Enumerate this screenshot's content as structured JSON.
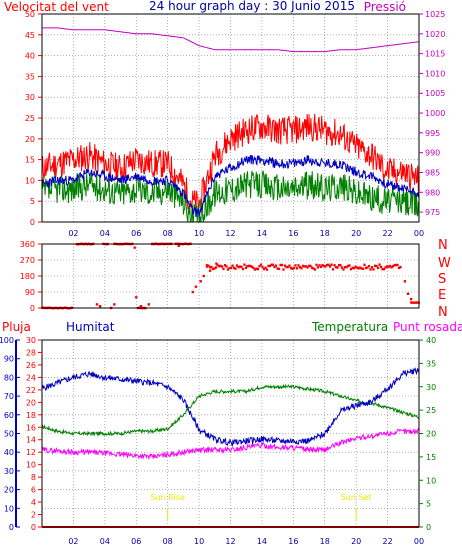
{
  "header": {
    "title": "24 hour graph day : 30 Junio 2015",
    "left_label": "Velocitat del vent",
    "right_label": "Pressió"
  },
  "colors": {
    "frame": "#000000",
    "grid": "#7f7f7f",
    "wind_max": "#ff0000",
    "wind_avg": "#0000c0",
    "wind_min": "#008000",
    "pressure": "#c000c0",
    "direction": "#ff0000",
    "rain": "#ff0000",
    "humidity": "#0000c0",
    "temperature": "#008000",
    "dewpoint": "#ff00ff",
    "sun_marker": "#e8e800",
    "title": "#0000a0"
  },
  "chart_data": [
    {
      "type": "line",
      "id": "wind_pressure",
      "title": "24 hour graph day : 30 Junio 2015",
      "x_ticks": [
        "02",
        "04",
        "06",
        "08",
        "10",
        "12",
        "14",
        "16",
        "18",
        "20",
        "22",
        "00"
      ],
      "xlim": [
        0,
        24
      ],
      "y_left": {
        "label": "Velocitat del vent",
        "range": [
          0,
          50
        ],
        "ticks": [
          "0",
          "5",
          "10",
          "15",
          "20",
          "25",
          "30",
          "35",
          "40",
          "45",
          "50"
        ]
      },
      "y_right": {
        "label": "Pressió",
        "range": [
          972.5,
          1025
        ],
        "ticks": [
          "975",
          "980",
          "985",
          "990",
          "995",
          "1000",
          "1005",
          "1010",
          "1015",
          "1020",
          "1025"
        ]
      },
      "x": [
        0,
        1,
        2,
        3,
        4,
        5,
        6,
        7,
        8,
        9,
        9.5,
        10,
        11,
        12,
        13,
        14,
        15,
        16,
        17,
        18,
        19,
        20,
        21,
        22,
        23,
        24
      ],
      "series": [
        {
          "key": "wind_max",
          "axis": "left",
          "values": [
            13,
            14,
            15,
            16,
            14,
            13,
            15,
            14,
            14,
            9,
            5,
            4,
            16,
            20,
            22,
            23,
            22,
            22,
            23,
            22,
            21,
            18,
            16,
            12,
            12,
            10
          ]
        },
        {
          "key": "wind_avg",
          "axis": "left",
          "values": [
            9,
            10,
            10,
            12,
            11,
            10,
            11,
            10,
            10,
            7,
            3,
            2,
            11,
            13,
            15,
            15,
            14,
            14,
            15,
            14,
            14,
            12,
            11,
            9,
            8,
            7
          ]
        },
        {
          "key": "wind_min",
          "axis": "left",
          "values": [
            7,
            8,
            8,
            9,
            8,
            7,
            8,
            7,
            8,
            5,
            1,
            1,
            7,
            8,
            9,
            9,
            8,
            8,
            9,
            8,
            9,
            7,
            6,
            5,
            5,
            4
          ]
        },
        {
          "key": "pressure",
          "axis": "right",
          "values": [
            1021.5,
            1021.5,
            1021,
            1021,
            1021,
            1020.5,
            1020,
            1020,
            1019.5,
            1019,
            1018,
            1017,
            1016,
            1016,
            1016,
            1016,
            1016,
            1015.5,
            1015.5,
            1015.5,
            1016,
            1016,
            1016.5,
            1017,
            1017.5,
            1018
          ]
        }
      ]
    },
    {
      "type": "scatter",
      "id": "wind_direction",
      "x_ticks": [
        "02",
        "04",
        "06",
        "08",
        "10",
        "12",
        "14",
        "16",
        "18",
        "20",
        "22",
        "00"
      ],
      "xlim": [
        0,
        24
      ],
      "y_left": {
        "range": [
          0,
          360
        ],
        "ticks": [
          "0",
          "90",
          "180",
          "270",
          "360"
        ]
      },
      "y_right": {
        "labels": [
          "N",
          "W",
          "S",
          "E",
          "N"
        ]
      },
      "segments": [
        {
          "x": [
            0,
            2.0
          ],
          "y": 0
        },
        {
          "x": [
            2.2,
            3.3
          ],
          "y": 360
        },
        {
          "x": [
            3.9,
            4.2
          ],
          "y": 360
        },
        {
          "x": [
            4.6,
            5.8
          ],
          "y": 360
        },
        {
          "x": [
            6.1,
            6.6
          ],
          "y": 0
        },
        {
          "x": [
            7.0,
            8.3
          ],
          "y": 360
        },
        {
          "x": [
            8.5,
            9.5
          ],
          "y": 360
        },
        {
          "x": [
            10.5,
            22.9
          ],
          "y": 230
        },
        {
          "x": [
            23.5,
            24
          ],
          "y": 30
        }
      ],
      "points": [
        {
          "x": 3.5,
          "y": 20
        },
        {
          "x": 3.7,
          "y": 10
        },
        {
          "x": 4.4,
          "y": 0
        },
        {
          "x": 4.6,
          "y": 20
        },
        {
          "x": 5.9,
          "y": 340
        },
        {
          "x": 6.0,
          "y": 60
        },
        {
          "x": 6.3,
          "y": 10
        },
        {
          "x": 6.8,
          "y": 20
        },
        {
          "x": 8.7,
          "y": 350
        },
        {
          "x": 9.6,
          "y": 90
        },
        {
          "x": 9.8,
          "y": 120
        },
        {
          "x": 10.1,
          "y": 150
        },
        {
          "x": 10.3,
          "y": 180
        },
        {
          "x": 10.5,
          "y": 240
        },
        {
          "x": 10.7,
          "y": 210
        },
        {
          "x": 11.1,
          "y": 250
        },
        {
          "x": 23.1,
          "y": 150
        },
        {
          "x": 23.3,
          "y": 80
        },
        {
          "x": 23.5,
          "y": 50
        }
      ]
    },
    {
      "type": "line",
      "id": "humidity_temperature",
      "labels": {
        "rain": "Pluja",
        "humidity": "Humitat",
        "temperature": "Temperatura",
        "dewpoint": "Punt rosada"
      },
      "annotations": [
        {
          "text": "Sun Rise",
          "x": 8
        },
        {
          "text": "Sun Set",
          "x": 20
        }
      ],
      "x_ticks": [
        "02",
        "04",
        "06",
        "08",
        "10",
        "12",
        "14",
        "16",
        "18",
        "20",
        "22",
        "00"
      ],
      "xlim": [
        0,
        24
      ],
      "y_rain": {
        "range": [
          0,
          30
        ],
        "ticks": [
          "0",
          "2",
          "4",
          "6",
          "8",
          "10",
          "12",
          "14",
          "16",
          "18",
          "20",
          "22",
          "24",
          "26",
          "28",
          "30"
        ]
      },
      "y_humidity": {
        "range": [
          0,
          100
        ],
        "ticks": [
          "0",
          "10",
          "20",
          "30",
          "40",
          "50",
          "60",
          "70",
          "80",
          "90",
          "100"
        ]
      },
      "y_temperature": {
        "range": [
          0,
          40
        ],
        "ticks": [
          "0",
          "5",
          "10",
          "15",
          "20",
          "25",
          "30",
          "35",
          "40"
        ]
      },
      "x": [
        0,
        1,
        2,
        3,
        4,
        5,
        6,
        7,
        8,
        9,
        10,
        11,
        12,
        13,
        14,
        15,
        16,
        17,
        18,
        19,
        20,
        21,
        22,
        23,
        24
      ],
      "series": [
        {
          "key": "humidity",
          "axis": "humidity",
          "values": [
            74,
            77,
            80,
            82,
            80,
            79,
            78,
            77,
            75,
            68,
            52,
            47,
            45,
            46,
            47,
            46,
            46,
            46,
            50,
            62,
            65,
            67,
            74,
            82,
            84
          ]
        },
        {
          "key": "temperature",
          "axis": "temperature",
          "values": [
            21.5,
            20.5,
            20,
            20,
            20,
            20,
            20.5,
            20.5,
            21,
            24,
            28,
            29,
            29,
            29,
            30,
            30,
            30,
            29.5,
            29,
            28,
            27,
            26.5,
            25.5,
            24.5,
            23.5
          ]
        },
        {
          "key": "dewpoint",
          "axis": "temperature",
          "values": [
            16.5,
            16.3,
            16,
            16,
            15.8,
            15.5,
            15.3,
            15,
            15.5,
            16,
            16.5,
            16.5,
            16.5,
            17,
            17.5,
            17,
            17,
            16.5,
            16.5,
            18,
            19,
            19.5,
            20,
            20.5,
            20.5
          ]
        },
        {
          "key": "rain",
          "axis": "rain",
          "values": [
            0,
            0,
            0,
            0,
            0,
            0,
            0,
            0,
            0,
            0,
            0,
            0,
            0,
            0,
            0,
            0,
            0,
            0,
            0,
            0,
            0,
            0,
            0,
            0,
            0
          ]
        }
      ]
    }
  ]
}
